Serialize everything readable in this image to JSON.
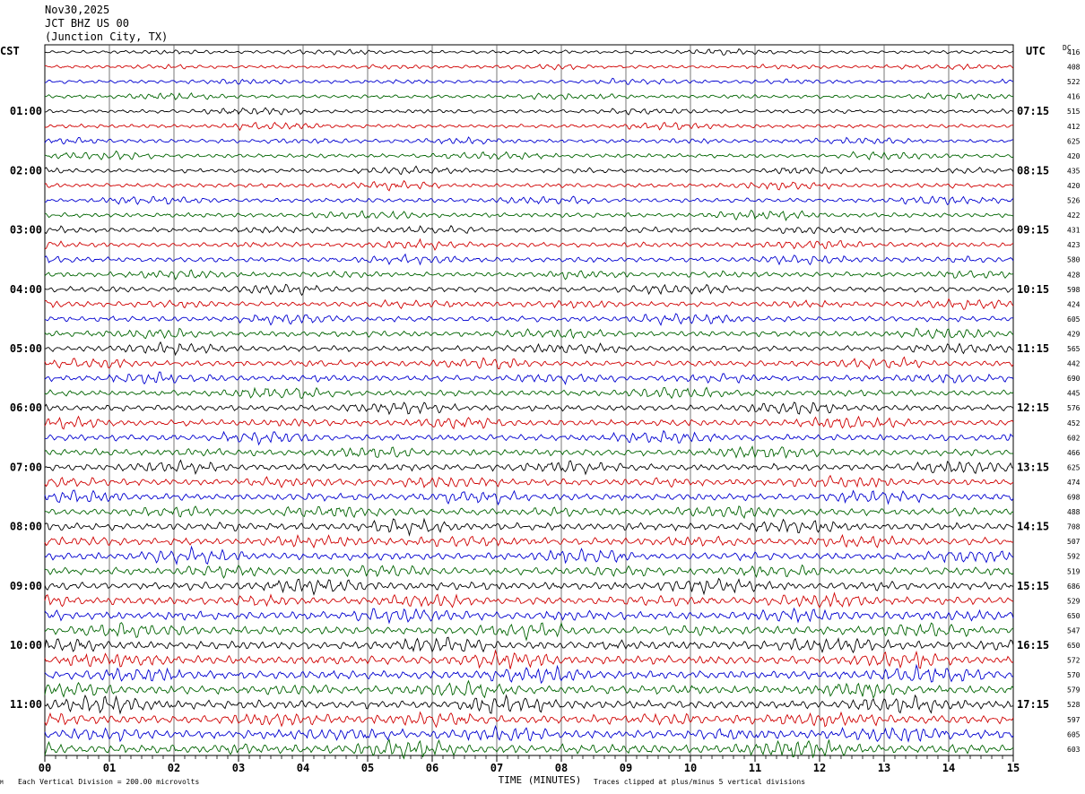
{
  "header": {
    "date": "Nov30,2025",
    "station": "JCT BHZ US 00",
    "location": "(Junction City, TX)"
  },
  "labels": {
    "left_tz": "CST",
    "right_tz": "UTC",
    "dc": "DC",
    "footer_scale": "Each Vertical Division =  200.00 microvolts",
    "footer_clip": "Traces clipped at plus/minus 5 vertical divisions",
    "corner_mark": "M"
  },
  "colors": {
    "trace_cycle": [
      "#000000",
      "#d00000",
      "#0000d0",
      "#006400"
    ],
    "grid": "#000000",
    "background": "#ffffff"
  },
  "chart_data": {
    "type": "line",
    "xlabel": "TIME (MINUTES)",
    "x_ticks": [
      "00",
      "01",
      "02",
      "03",
      "04",
      "05",
      "06",
      "07",
      "08",
      "09",
      "10",
      "11",
      "12",
      "13",
      "14",
      "15"
    ],
    "xlim": [
      0,
      15
    ],
    "traces_per_hour": 4,
    "hours_left": [
      "",
      "01:00",
      "02:00",
      "03:00",
      "04:00",
      "05:00",
      "06:00",
      "07:00",
      "08:00",
      "09:00",
      "10:00",
      "11:00"
    ],
    "hours_right": [
      "",
      "07:15",
      "08:15",
      "09:15",
      "10:15",
      "11:15",
      "12:15",
      "13:15",
      "14:15",
      "15:15",
      "16:15",
      "17:15"
    ],
    "dc_offsets": [
      "416",
      "408",
      "522",
      "416",
      "515",
      "412",
      "625",
      "420",
      "435",
      "420",
      "526",
      "422",
      "431",
      "423",
      "580",
      "428",
      "598",
      "424",
      "605",
      "429",
      "565",
      "442",
      "690",
      "445",
      "576",
      "452",
      "602",
      "466",
      "625",
      "474",
      "698",
      "488",
      "708",
      "507",
      "592",
      "519",
      "686",
      "529",
      "650",
      "547",
      "650",
      "572",
      "570",
      "579",
      "528",
      "597",
      "605",
      "603"
    ]
  }
}
